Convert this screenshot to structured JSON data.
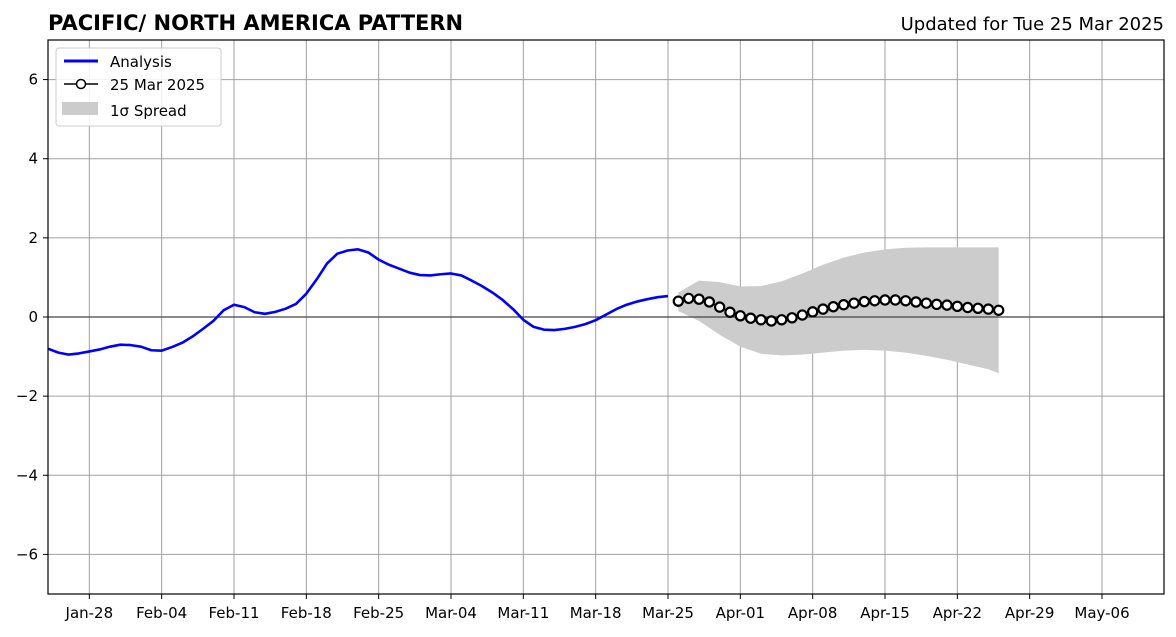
{
  "chart_data": {
    "type": "line",
    "title": "PACIFIC/ NORTH AMERICA PATTERN",
    "subtitle": "Updated for Tue 25 Mar 2025",
    "xlabel": "",
    "ylabel": "",
    "x_range": [
      "2025-01-24",
      "2025-05-12"
    ],
    "ylim": [
      -7,
      7
    ],
    "grid": true,
    "legend_position": "top-left",
    "x_ticks": [
      {
        "date": "2025-01-28",
        "label": "Jan-28"
      },
      {
        "date": "2025-02-04",
        "label": "Feb-04"
      },
      {
        "date": "2025-02-11",
        "label": "Feb-11"
      },
      {
        "date": "2025-02-18",
        "label": "Feb-18"
      },
      {
        "date": "2025-02-25",
        "label": "Feb-25"
      },
      {
        "date": "2025-03-04",
        "label": "Mar-04"
      },
      {
        "date": "2025-03-11",
        "label": "Mar-11"
      },
      {
        "date": "2025-03-18",
        "label": "Mar-18"
      },
      {
        "date": "2025-03-25",
        "label": "Mar-25"
      },
      {
        "date": "2025-04-01",
        "label": "Apr-01"
      },
      {
        "date": "2025-04-08",
        "label": "Apr-08"
      },
      {
        "date": "2025-04-15",
        "label": "Apr-15"
      },
      {
        "date": "2025-04-22",
        "label": "Apr-22"
      },
      {
        "date": "2025-04-29",
        "label": "Apr-29"
      },
      {
        "date": "2025-05-06",
        "label": "May-06"
      }
    ],
    "y_ticks": [
      {
        "value": 6,
        "label": "6"
      },
      {
        "value": 4,
        "label": "4"
      },
      {
        "value": 2,
        "label": "2"
      },
      {
        "value": 0,
        "label": "0"
      },
      {
        "value": -2,
        "label": "−2"
      },
      {
        "value": -4,
        "label": "−4"
      },
      {
        "value": -6,
        "label": "−6"
      }
    ],
    "legend": [
      "Analysis",
      "25 Mar 2025",
      "1σ Spread"
    ],
    "series": [
      {
        "name": "Analysis",
        "color": "#0000ff",
        "x": [
          "2025-01-24",
          "2025-01-25",
          "2025-01-26",
          "2025-01-27",
          "2025-01-28",
          "2025-01-29",
          "2025-01-30",
          "2025-01-31",
          "2025-02-01",
          "2025-02-02",
          "2025-02-03",
          "2025-02-04",
          "2025-02-05",
          "2025-02-06",
          "2025-02-07",
          "2025-02-08",
          "2025-02-09",
          "2025-02-10",
          "2025-02-11",
          "2025-02-12",
          "2025-02-13",
          "2025-02-14",
          "2025-02-15",
          "2025-02-16",
          "2025-02-17",
          "2025-02-18",
          "2025-02-19",
          "2025-02-20",
          "2025-02-21",
          "2025-02-22",
          "2025-02-23",
          "2025-02-24",
          "2025-02-25",
          "2025-02-26",
          "2025-02-27",
          "2025-02-28",
          "2025-03-01",
          "2025-03-02",
          "2025-03-03",
          "2025-03-04",
          "2025-03-05",
          "2025-03-06",
          "2025-03-07",
          "2025-03-08",
          "2025-03-09",
          "2025-03-10",
          "2025-03-11",
          "2025-03-12",
          "2025-03-13",
          "2025-03-14",
          "2025-03-15",
          "2025-03-16",
          "2025-03-17",
          "2025-03-18",
          "2025-03-19",
          "2025-03-20",
          "2025-03-21",
          "2025-03-22",
          "2025-03-23",
          "2025-03-24",
          "2025-03-25"
        ],
        "values": [
          -0.8,
          -0.9,
          -0.95,
          -0.92,
          -0.87,
          -0.82,
          -0.75,
          -0.7,
          -0.71,
          -0.75,
          -0.84,
          -0.85,
          -0.76,
          -0.65,
          -0.49,
          -0.3,
          -0.1,
          0.17,
          0.31,
          0.25,
          0.12,
          0.08,
          0.13,
          0.21,
          0.33,
          0.59,
          0.95,
          1.35,
          1.6,
          1.68,
          1.71,
          1.63,
          1.45,
          1.32,
          1.22,
          1.12,
          1.06,
          1.05,
          1.08,
          1.1,
          1.05,
          0.92,
          0.78,
          0.62,
          0.43,
          0.2,
          -0.07,
          -0.25,
          -0.32,
          -0.33,
          -0.3,
          -0.25,
          -0.18,
          -0.08,
          0.06,
          0.2,
          0.31,
          0.39,
          0.45,
          0.5,
          0.53
        ]
      },
      {
        "name": "25 Mar 2025",
        "color": "#000000",
        "marker": "circle",
        "x": [
          "2025-03-26",
          "2025-03-27",
          "2025-03-28",
          "2025-03-29",
          "2025-03-30",
          "2025-03-31",
          "2025-04-01",
          "2025-04-02",
          "2025-04-03",
          "2025-04-04",
          "2025-04-05",
          "2025-04-06",
          "2025-04-07",
          "2025-04-08",
          "2025-04-09",
          "2025-04-10",
          "2025-04-11",
          "2025-04-12",
          "2025-04-13",
          "2025-04-14",
          "2025-04-15",
          "2025-04-16",
          "2025-04-17",
          "2025-04-18",
          "2025-04-19",
          "2025-04-20",
          "2025-04-21",
          "2025-04-22",
          "2025-04-23",
          "2025-04-24",
          "2025-04-25",
          "2025-04-26"
        ],
        "values": [
          0.4,
          0.47,
          0.45,
          0.38,
          0.25,
          0.12,
          0.03,
          -0.03,
          -0.07,
          -0.1,
          -0.07,
          -0.02,
          0.05,
          0.13,
          0.2,
          0.26,
          0.31,
          0.35,
          0.39,
          0.41,
          0.43,
          0.43,
          0.41,
          0.38,
          0.35,
          0.32,
          0.3,
          0.27,
          0.24,
          0.22,
          0.2,
          0.17
        ]
      }
    ],
    "spread": {
      "name": "1σ Spread",
      "color": "#cccccc",
      "x": [
        "2025-03-26",
        "2025-03-28",
        "2025-03-30",
        "2025-04-01",
        "2025-04-03",
        "2025-04-05",
        "2025-04-07",
        "2025-04-09",
        "2025-04-11",
        "2025-04-13",
        "2025-04-15",
        "2025-04-17",
        "2025-04-19",
        "2025-04-21",
        "2025-04-23",
        "2025-04-25",
        "2025-04-26"
      ],
      "upper": [
        0.62,
        0.92,
        0.88,
        0.77,
        0.78,
        0.9,
        1.1,
        1.32,
        1.5,
        1.63,
        1.71,
        1.75,
        1.76,
        1.76,
        1.76,
        1.76,
        1.76
      ],
      "lower": [
        0.15,
        -0.1,
        -0.45,
        -0.75,
        -0.93,
        -0.97,
        -0.95,
        -0.9,
        -0.85,
        -0.83,
        -0.85,
        -0.9,
        -0.98,
        -1.08,
        -1.2,
        -1.32,
        -1.42
      ]
    }
  }
}
